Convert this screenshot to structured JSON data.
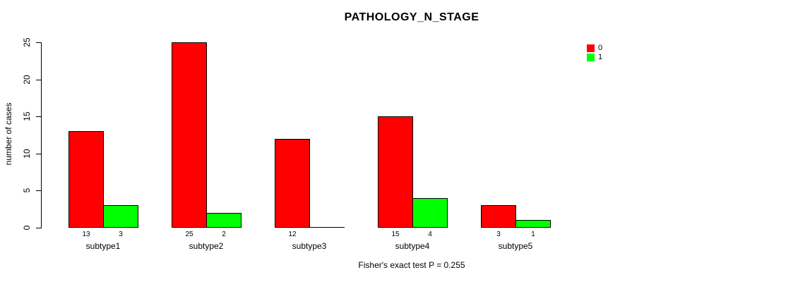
{
  "chart_data": {
    "type": "bar",
    "subtype": "grouped",
    "title": "PATHOLOGY_N_STAGE",
    "ylabel": "number of cases",
    "xlabel": "",
    "categories": [
      "subtype1",
      "subtype2",
      "subtype3",
      "subtype4",
      "subtype5"
    ],
    "series": [
      {
        "name": "0",
        "color": "#FF0000",
        "values": [
          13,
          25,
          12,
          15,
          3
        ]
      },
      {
        "name": "1",
        "color": "#00FF00",
        "values": [
          3,
          2,
          0,
          4,
          1
        ]
      }
    ],
    "bar_value_labels": [
      [
        "13",
        "3"
      ],
      [
        "25",
        "2"
      ],
      [
        "12",
        ""
      ],
      [
        "15",
        "4"
      ],
      [
        "3",
        "1"
      ]
    ],
    "ylim": [
      0,
      25
    ],
    "yticks": [
      0,
      5,
      10,
      15,
      20,
      25
    ],
    "grid": false,
    "legend_position": "top-right",
    "footer": "Fisher's exact test P = 0.255"
  },
  "colors": {
    "background": "#FFFFFF",
    "axis": "#000000",
    "text": "#000000",
    "bar_border": "#000000"
  }
}
